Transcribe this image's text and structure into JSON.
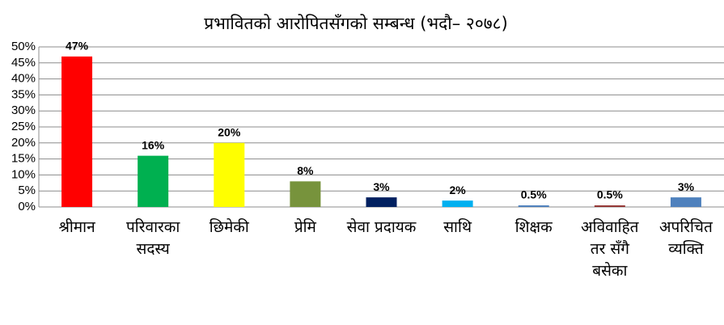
{
  "chart_data": {
    "type": "bar",
    "title": "प्रभावितको आरोपितसँगको सम्बन्ध  (भदौ– २०७८)",
    "categories": [
      "श्रीमान",
      "परिवारका सदस्य",
      "छिमेकी",
      "प्रेमि",
      "सेवा प्रदायक",
      "साथि",
      "शिक्षक",
      "अविवाहित तर सँगै बसेका",
      "अपरिचित व्यक्ति"
    ],
    "values": [
      47,
      16,
      20,
      8,
      3,
      2,
      0.5,
      0.5,
      3
    ],
    "value_labels": [
      "47%",
      "16%",
      "20%",
      "8%",
      "3%",
      "2%",
      "0.5%",
      "0.5%",
      "3%"
    ],
    "colors": [
      "#ff0000",
      "#00b050",
      "#ffff00",
      "#77933c",
      "#002060",
      "#00b0f0",
      "#4f81bd",
      "#943634",
      "#4f81bd"
    ],
    "ylim": [
      0,
      50
    ],
    "yticks": [
      {
        "value": 0,
        "label": "0%"
      },
      {
        "value": 5,
        "label": "5%"
      },
      {
        "value": 10,
        "label": "10%"
      },
      {
        "value": 15,
        "label": "15%"
      },
      {
        "value": 20,
        "label": "20%"
      },
      {
        "value": 25,
        "label": "25%"
      },
      {
        "value": 30,
        "label": "30%"
      },
      {
        "value": 35,
        "label": "35%"
      },
      {
        "value": 40,
        "label": "40%"
      },
      {
        "value": 45,
        "label": "45%"
      },
      {
        "value": 50,
        "label": "50%"
      }
    ],
    "grid": true
  }
}
